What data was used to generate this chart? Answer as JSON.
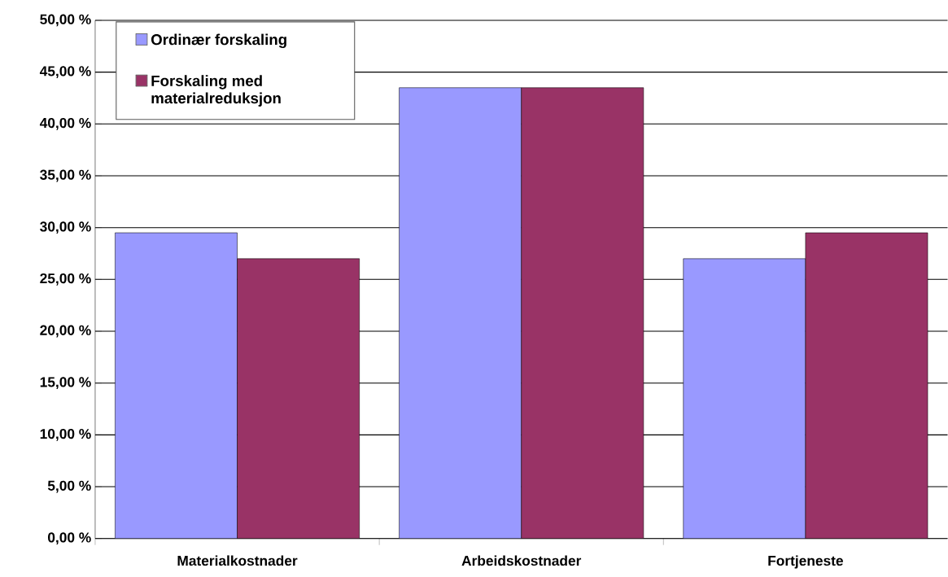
{
  "chart_data": {
    "type": "bar",
    "categories": [
      "Materialkostnader",
      "Arbeidskostnader",
      "Fortjeneste"
    ],
    "series": [
      {
        "name": "Ordinær forskaling",
        "color": "#9999ff",
        "values": [
          29.5,
          43.5,
          27.0
        ]
      },
      {
        "name": "Forskaling med materialreduksjon",
        "color": "#993366",
        "values": [
          27.0,
          43.5,
          29.5
        ]
      }
    ],
    "ylim": [
      0,
      50
    ],
    "yticks": [
      {
        "value": 0,
        "label": "0,00 %"
      },
      {
        "value": 5,
        "label": "5,00 %"
      },
      {
        "value": 10,
        "label": "10,00 %"
      },
      {
        "value": 15,
        "label": "15,00 %"
      },
      {
        "value": 20,
        "label": "20,00 %"
      },
      {
        "value": 25,
        "label": "25,00 %"
      },
      {
        "value": 30,
        "label": "30,00 %"
      },
      {
        "value": 35,
        "label": "35,00 %"
      },
      {
        "value": 40,
        "label": "40,00 %"
      },
      {
        "value": 45,
        "label": "45,00 %"
      },
      {
        "value": 50,
        "label": "50,00 %"
      }
    ],
    "grid": "y",
    "legend": "top left"
  }
}
